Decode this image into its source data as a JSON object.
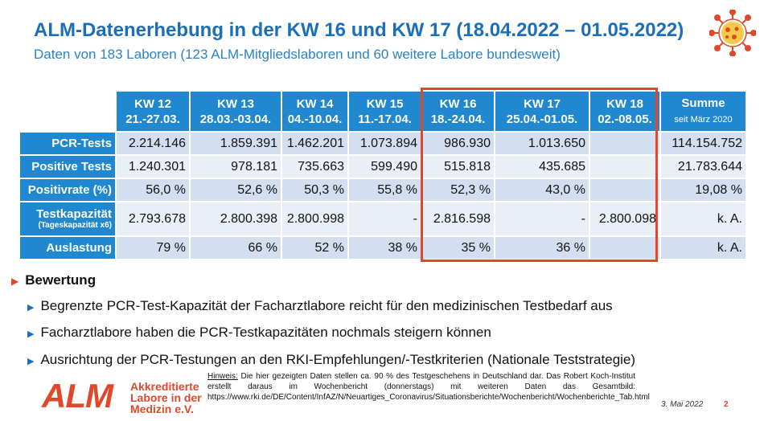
{
  "header": {
    "title": "ALM-Datenerhebung in der KW 16 und KW 17 (18.04.2022 – 01.05.2022)",
    "subtitle": "Daten von 183 Laboren (123 ALM-Mitgliedslaboren und 60 weitere Labore bundesweit)"
  },
  "table": {
    "columns": [
      {
        "week": "KW 12",
        "range": "21.-27.03."
      },
      {
        "week": "KW 13",
        "range": "28.03.-03.04."
      },
      {
        "week": "KW 14",
        "range": "04.-10.04."
      },
      {
        "week": "KW 15",
        "range": "11.-17.04."
      },
      {
        "week": "KW 16",
        "range": "18.-24.04."
      },
      {
        "week": "KW 17",
        "range": "25.04.-01.05."
      },
      {
        "week": "KW 18",
        "range": "02.-08.05."
      }
    ],
    "sum_header": {
      "label": "Summe",
      "note": "seit März 2020"
    },
    "rows": [
      {
        "label": "PCR-Tests",
        "sublabel": "",
        "values": [
          "2.214.146",
          "1.859.391",
          "1.462.201",
          "1.073.894",
          "986.930",
          "1.013.650",
          ""
        ],
        "sum": "114.154.752"
      },
      {
        "label": "Positive Tests",
        "sublabel": "",
        "values": [
          "1.240.301",
          "978.181",
          "735.663",
          "599.490",
          "515.818",
          "435.685",
          ""
        ],
        "sum": "21.783.644"
      },
      {
        "label": "Positivrate (%)",
        "sublabel": "",
        "values": [
          "56,0 %",
          "52,6 %",
          "50,3 %",
          "55,8 %",
          "52,3 %",
          "43,0 %",
          ""
        ],
        "sum": "19,08 %"
      },
      {
        "label": "Testkapazität",
        "sublabel": "(Tageskapazität x6)",
        "values": [
          "2.793.678",
          "2.800.398",
          "2.800.998",
          "-",
          "2.816.598",
          "-",
          "2.800.098"
        ],
        "sum": "k. A."
      },
      {
        "label": "Auslastung",
        "sublabel": "",
        "values": [
          "79 %",
          "66 %",
          "52 %",
          "38 %",
          "35 %",
          "36 %",
          ""
        ],
        "sum": "k. A."
      }
    ]
  },
  "bewertung": {
    "heading": "Bewertung",
    "bullets": [
      "Begrenzte PCR-Test-Kapazität der Facharztlabore reicht für den medizinischen Testbedarf aus",
      "Facharztlabore haben die PCR-Testkapazitäten nochmals steigern können",
      "Ausrichtung der PCR-Testungen an den RKI-Empfehlungen/-Testkriterien (Nationale Teststrategie)"
    ]
  },
  "footer": {
    "logo_mark": "ALM",
    "logo_lines": [
      "Akkreditierte",
      "Labore in der",
      "Medizin e.V."
    ],
    "hint_label": "Hinweis:",
    "hint_text": "Die hier gezeigten Daten stellen ca. 90 % des Testgeschehens in Deutschland dar. Das Robert Koch-Institut erstellt daraus im Wochenbericht (donnerstags) mit weiteren Daten das Gesamtbild: https://www.rki.de/DE/Content/InfAZ/N/Neuartiges_Coronavirus/Situationsberichte/Wochenbericht/Wochenberichte_Tab.html",
    "date": "3. Mai 2022",
    "page": "2"
  },
  "colors": {
    "accent_blue": "#1f88d0",
    "title_blue": "#1b6fb8",
    "highlight_red": "#e0482a",
    "row_a": "#d3dff0",
    "row_b": "#e9eef7"
  }
}
